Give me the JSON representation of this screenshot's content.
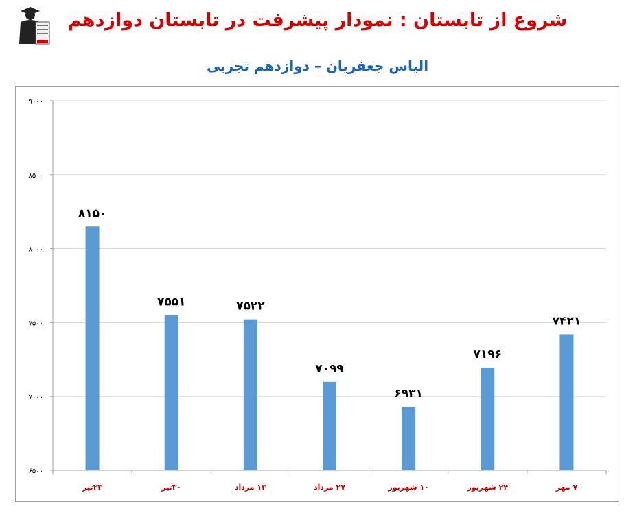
{
  "header": {
    "title": "شروع از تابستان : نمودار پیشرفت در تابستان دوازدهم",
    "subtitle": "الیاس جعفریان – دوازدهم تجربی",
    "logo_icon": "graduate-logo-icon",
    "title_color": "#d50000",
    "subtitle_color": "#1565c0"
  },
  "chart_data": {
    "type": "bar",
    "title": "",
    "xlabel": "",
    "ylabel": "",
    "categories": [
      "۲۳تیر",
      "۳۰تیر",
      "۱۳ مرداد",
      "۲۷ مرداد",
      "۱۰ شهریور",
      "۲۴ شهریور",
      "۷ مهر"
    ],
    "values": [
      8150,
      7551,
      7522,
      7099,
      6931,
      7196,
      7421
    ],
    "value_labels": [
      "۸۱۵۰",
      "۷۵۵۱",
      "۷۵۲۲",
      "۷۰۹۹",
      "۶۹۳۱",
      "۷۱۹۶",
      "۷۴۲۱"
    ],
    "ylim": [
      6500,
      9000
    ],
    "yticks": [
      6500,
      7000,
      7500,
      8000,
      8500,
      9000
    ],
    "ytick_labels": [
      "۶۵۰۰",
      "۷۰۰۰",
      "۷۵۰۰",
      "۸۰۰۰",
      "۸۵۰۰",
      "۹۰۰۰"
    ],
    "grid": true,
    "legend": "none",
    "bar_color": "#5b9bd5",
    "xlabel_color": "#c00000"
  }
}
